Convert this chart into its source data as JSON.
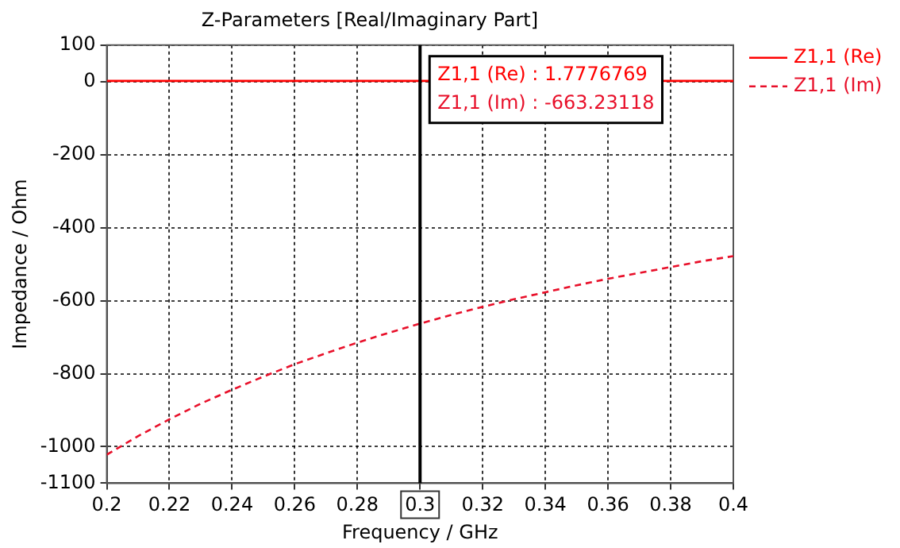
{
  "chart_data": {
    "type": "line",
    "title": "Z-Parameters [Real/Imaginary Part]",
    "xlabel": "Frequency / GHz",
    "ylabel": "Impedance / Ohm",
    "x": [
      0.2,
      0.21,
      0.22,
      0.23,
      0.24,
      0.25,
      0.26,
      0.27,
      0.28,
      0.29,
      0.3,
      0.31,
      0.32,
      0.33,
      0.34,
      0.35,
      0.36,
      0.37,
      0.38,
      0.39,
      0.4
    ],
    "series": [
      {
        "name": "Z1,1 (Re)",
        "color": "#ff0000",
        "line_style": "solid",
        "values": [
          2,
          2,
          2,
          2,
          2,
          2,
          2,
          2,
          2,
          2,
          2,
          null,
          null,
          null,
          null,
          null,
          null,
          2,
          2,
          2,
          2
        ]
      },
      {
        "name": "Z1,1 (Im)",
        "color": "#e8102a",
        "line_style": "dashed",
        "values": [
          -1022,
          -971,
          -925,
          -882,
          -844,
          -808,
          -774,
          -744,
          -715,
          -688,
          -663,
          -639,
          -617,
          -596,
          -577,
          -558,
          -540,
          -524,
          -508,
          -492,
          -478
        ]
      }
    ],
    "xlim": [
      0.2,
      0.4
    ],
    "xticks": [
      0.2,
      0.22,
      0.24,
      0.26,
      0.28,
      0.3,
      0.32,
      0.34,
      0.36,
      0.38,
      0.4
    ],
    "ylim": [
      -1100,
      100
    ],
    "yticks": [
      100,
      0,
      -200,
      -400,
      -600,
      -800,
      -1000,
      -1100
    ],
    "ref_lines": [
      {
        "axis": "x",
        "value": 0.3,
        "color": "#000000"
      }
    ],
    "annotations": [
      "Z1,1 (Re) : 1.7776769",
      "Z1,1 (Im) : -663.23118"
    ],
    "grid": true,
    "legend": "top right",
    "marker": "none"
  }
}
